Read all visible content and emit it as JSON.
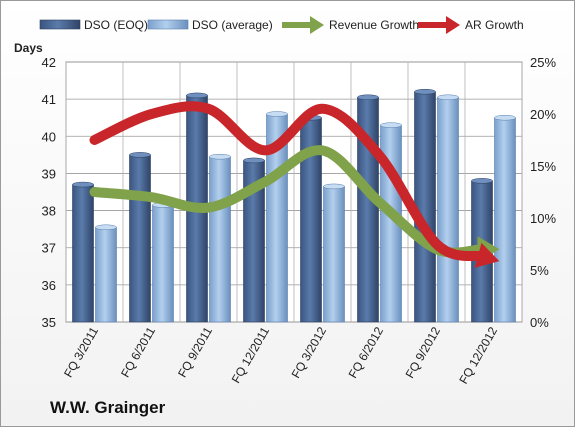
{
  "chart_data": {
    "type": "bar",
    "title": "",
    "footer_title": "W.W. Grainger",
    "ylabel_left": "Days",
    "ylim_left": [
      35,
      42
    ],
    "yticks_left": [
      "35",
      "36",
      "37",
      "38",
      "39",
      "40",
      "41",
      "42"
    ],
    "ylim_right": [
      0,
      25
    ],
    "yticks_right": [
      "0%",
      "5%",
      "10%",
      "15%",
      "20%",
      "25%"
    ],
    "categories": [
      "FQ 3/2011",
      "FQ 6/2011",
      "FQ 9/2011",
      "FQ 12/2011",
      "FQ 3/2012",
      "FQ 6/2012",
      "FQ 9/2012",
      "FQ 12/2012"
    ],
    "legend_placement": "top",
    "grid": true,
    "series": [
      {
        "name": "DSO (EOQ)",
        "type": "bar",
        "axis": "left",
        "color": "#4a6a9a",
        "values": [
          38.7,
          39.5,
          41.1,
          39.35,
          40.5,
          41.05,
          41.2,
          38.8
        ]
      },
      {
        "name": "DSO (average)",
        "type": "bar",
        "axis": "left",
        "color": "#8fb3dd",
        "values": [
          37.55,
          38.15,
          39.45,
          40.6,
          38.65,
          40.3,
          41.05,
          40.5
        ]
      },
      {
        "name": "Revenue Growth",
        "type": "line",
        "axis": "right",
        "color": "#7fa24a",
        "values": [
          12.5,
          12,
          11,
          13.5,
          16.5,
          11.5,
          7,
          7
        ]
      },
      {
        "name": "AR Growth",
        "type": "line",
        "axis": "right",
        "color": "#c8262a",
        "values": [
          17.5,
          20,
          20.5,
          16.5,
          20.5,
          16,
          7.5,
          6
        ]
      }
    ]
  }
}
